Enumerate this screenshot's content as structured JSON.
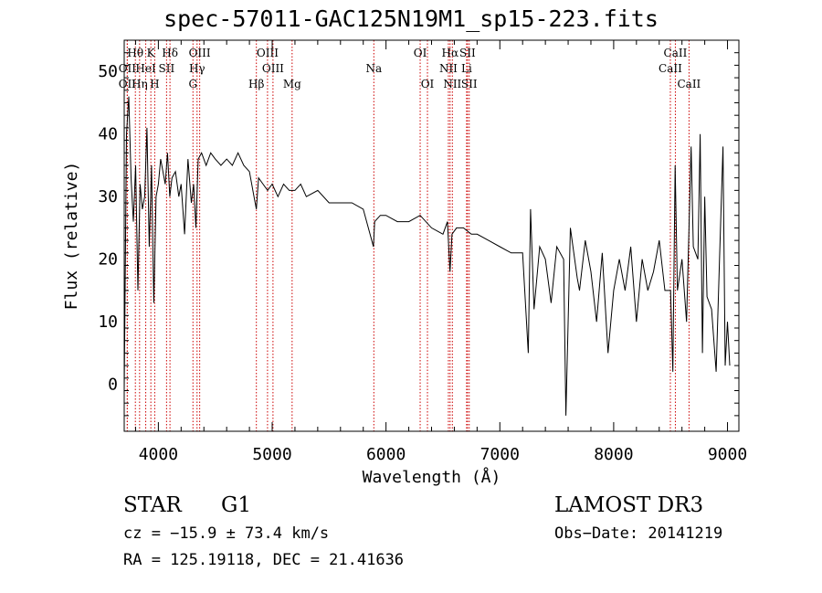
{
  "header": {
    "title": "spec-57011-GAC125N19M1_sp15-223.fits"
  },
  "chart_data": {
    "type": "line",
    "title": "spec-57011-GAC125N19M1_sp15-223.fits",
    "xlabel": "Wavelength (Å)",
    "ylabel": "Flux (relative)",
    "xlim": [
      3700,
      9100
    ],
    "ylim": [
      -7.5,
      55
    ],
    "xticks": [
      4000,
      5000,
      6000,
      7000,
      8000,
      9000
    ],
    "yticks": [
      0,
      10,
      20,
      30,
      40,
      50
    ],
    "series": [
      {
        "name": "spectrum",
        "x": [
          3700,
          3720,
          3740,
          3760,
          3780,
          3800,
          3820,
          3840,
          3860,
          3880,
          3900,
          3920,
          3940,
          3960,
          3980,
          4000,
          4020,
          4040,
          4060,
          4080,
          4100,
          4120,
          4150,
          4180,
          4200,
          4230,
          4260,
          4290,
          4310,
          4330,
          4350,
          4380,
          4420,
          4460,
          4500,
          4550,
          4600,
          4650,
          4700,
          4750,
          4800,
          4840,
          4861,
          4880,
          4920,
          4960,
          5000,
          5050,
          5100,
          5150,
          5200,
          5250,
          5300,
          5400,
          5500,
          5600,
          5700,
          5800,
          5890,
          5900,
          5950,
          6000,
          6100,
          6200,
          6300,
          6400,
          6500,
          6540,
          6562,
          6580,
          6620,
          6680,
          6750,
          6800,
          6900,
          7000,
          7100,
          7200,
          7250,
          7270,
          7300,
          7350,
          7400,
          7450,
          7500,
          7560,
          7580,
          7620,
          7680,
          7700,
          7750,
          7800,
          7850,
          7900,
          7950,
          8000,
          8050,
          8100,
          8150,
          8200,
          8250,
          8300,
          8350,
          8400,
          8450,
          8500,
          8520,
          8540,
          8560,
          8600,
          8640,
          8680,
          8700,
          8740,
          8760,
          8780,
          8800,
          8820,
          8860,
          8900,
          8930,
          8960,
          8980,
          9000,
          9020
        ],
        "y": [
          -1,
          40,
          46,
          33,
          26,
          35,
          15,
          32,
          28,
          30,
          41,
          22,
          35,
          13,
          30,
          32,
          36,
          34,
          32,
          37,
          30,
          33,
          34,
          30,
          32,
          24,
          36,
          29,
          32,
          25,
          36,
          37,
          35,
          37,
          36,
          35,
          36,
          35,
          37,
          35,
          34,
          30,
          28,
          33,
          32,
          31,
          32,
          30,
          32,
          31,
          31,
          32,
          30,
          31,
          29,
          29,
          29,
          28,
          22,
          26,
          27,
          27,
          26,
          26,
          27,
          25,
          24,
          26,
          18,
          24,
          25,
          25,
          24,
          24,
          23,
          22,
          21,
          21,
          5,
          28,
          12,
          22,
          20,
          13,
          22,
          20,
          -5,
          25,
          17,
          15,
          23,
          18,
          10,
          21,
          5,
          15,
          20,
          15,
          22,
          10,
          20,
          15,
          18,
          23,
          15,
          15,
          2,
          35,
          15,
          20,
          10,
          38,
          22,
          20,
          40,
          5,
          30,
          14,
          12,
          2,
          20,
          38,
          3,
          10,
          3
        ]
      }
    ],
    "lines": [
      {
        "label": "Hθ",
        "wave": 3798,
        "row": 0
      },
      {
        "label": "K",
        "wave": 3934,
        "row": 0
      },
      {
        "label": "Hδ",
        "wave": 4102,
        "row": 0
      },
      {
        "label": "OIII",
        "wave": 4363,
        "row": 0
      },
      {
        "label": "OIII",
        "wave": 4959,
        "row": 0
      },
      {
        "label": "OI",
        "wave": 6300,
        "row": 0
      },
      {
        "label": "Hα",
        "wave": 6563,
        "row": 0
      },
      {
        "label": "SII",
        "wave": 6716,
        "row": 0
      },
      {
        "label": "CaII",
        "wave": 8542,
        "row": 0
      },
      {
        "label": "OII",
        "wave": 3727,
        "row": 1
      },
      {
        "label": "HeI",
        "wave": 3889,
        "row": 1
      },
      {
        "label": "SII",
        "wave": 4072,
        "row": 1
      },
      {
        "label": "Hγ",
        "wave": 4340,
        "row": 1
      },
      {
        "label": "OIII",
        "wave": 5007,
        "row": 1
      },
      {
        "label": "Na",
        "wave": 5893,
        "row": 1
      },
      {
        "label": "NII",
        "wave": 6548,
        "row": 1
      },
      {
        "label": "Li",
        "wave": 6708,
        "row": 1
      },
      {
        "label": "CaII",
        "wave": 8498,
        "row": 1
      },
      {
        "label": "OII",
        "wave": 3727,
        "row": 2
      },
      {
        "label": "Hη",
        "wave": 3835,
        "row": 2
      },
      {
        "label": "H",
        "wave": 3968,
        "row": 2
      },
      {
        "label": "G",
        "wave": 4304,
        "row": 2
      },
      {
        "label": "Hβ",
        "wave": 4861,
        "row": 2
      },
      {
        "label": "Mg",
        "wave": 5175,
        "row": 2
      },
      {
        "label": "OI",
        "wave": 6364,
        "row": 2
      },
      {
        "label": "NII",
        "wave": 6583,
        "row": 2
      },
      {
        "label": "SII",
        "wave": 6731,
        "row": 2
      },
      {
        "label": "CaII",
        "wave": 8662,
        "row": 2
      }
    ],
    "line_color": "#cc0000"
  },
  "info": {
    "class": "STAR",
    "subclass": "G1",
    "survey": "LAMOST DR3",
    "cz": "cz = −15.9 ± 73.4 km/s",
    "obs_date": "Obs−Date: 20141219",
    "coords": "RA = 125.19118, DEC =  21.41636"
  }
}
